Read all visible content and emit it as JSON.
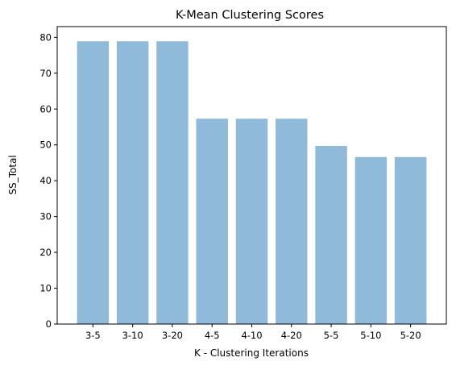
{
  "chart_data": {
    "type": "bar",
    "title": "K-Mean Clustering Scores",
    "xlabel": "K - Clustering Iterations",
    "ylabel": "SS_Total",
    "categories": [
      "3-5",
      "3-10",
      "3-20",
      "4-5",
      "4-10",
      "4-20",
      "5-5",
      "5-10",
      "5-20"
    ],
    "values": [
      78.9,
      78.9,
      78.9,
      57.3,
      57.3,
      57.3,
      49.7,
      46.6,
      46.6
    ],
    "ylim": [
      0,
      83
    ],
    "yticks": [
      0,
      10,
      20,
      30,
      40,
      50,
      60,
      70,
      80
    ],
    "bar_color": "#8fbada",
    "grid": false,
    "legend": "none"
  }
}
